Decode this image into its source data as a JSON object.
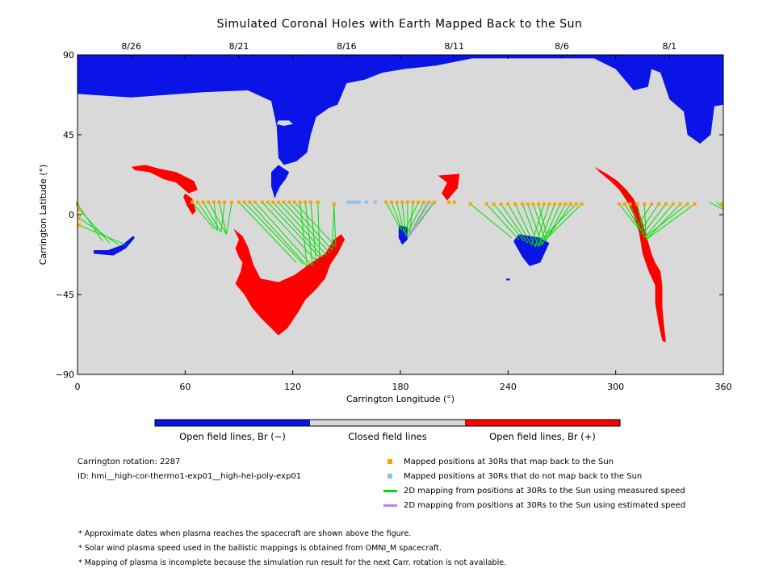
{
  "title": "Simulated Coronal Holes with Earth Mapped Back to the Sun",
  "chart_data": {
    "type": "scatter",
    "title": "Simulated Coronal Holes with Earth Mapped Back to the Sun",
    "xlabel": "Carrington Longitude (°)",
    "ylabel": "Carrington Latitude (°)",
    "xlim": [
      0,
      360
    ],
    "ylim": [
      -90,
      90
    ],
    "x_ticks": [
      {
        "value": 0,
        "label": "0"
      },
      {
        "value": 60,
        "label": "60"
      },
      {
        "value": 120,
        "label": "120"
      },
      {
        "value": 180,
        "label": "180"
      },
      {
        "value": 240,
        "label": "240"
      },
      {
        "value": 300,
        "label": "300"
      },
      {
        "value": 360,
        "label": "360"
      }
    ],
    "y_ticks": [
      {
        "value": 90,
        "label": "90"
      },
      {
        "value": 45,
        "label": "45"
      },
      {
        "value": 0,
        "label": "0"
      },
      {
        "value": -45,
        "label": "−45"
      },
      {
        "value": -90,
        "label": "−90"
      }
    ],
    "top_dates": [
      {
        "label": "8/26",
        "lon": 30
      },
      {
        "label": "8/21",
        "lon": 90
      },
      {
        "label": "8/16",
        "lon": 150
      },
      {
        "label": "8/11",
        "lon": 210
      },
      {
        "label": "8/6",
        "lon": 270
      },
      {
        "label": "8/1",
        "lon": 330
      }
    ],
    "colors": {
      "open_negative": "#0a14e6",
      "closed": "#d9d9d9",
      "open_positive": "#ff0000",
      "mapped": "#f5a500",
      "unmapped": "#88c1f0",
      "measured_line": "#00e000",
      "estimated_line": "#c080f0"
    },
    "regions_negative": [
      [
        [
          0,
          90
        ],
        [
          360,
          90
        ],
        [
          360,
          62
        ],
        [
          355,
          61
        ],
        [
          353,
          45
        ],
        [
          347,
          40
        ],
        [
          340,
          45
        ],
        [
          338,
          58
        ],
        [
          330,
          65
        ],
        [
          325,
          80
        ],
        [
          320,
          82
        ],
        [
          318,
          72
        ],
        [
          310,
          70
        ],
        [
          300,
          82
        ],
        [
          288,
          88
        ],
        [
          245,
          88
        ],
        [
          220,
          88
        ],
        [
          200,
          84
        ],
        [
          182,
          82
        ],
        [
          170,
          80
        ],
        [
          160,
          76
        ],
        [
          150,
          74
        ],
        [
          145,
          62
        ],
        [
          140,
          60
        ],
        [
          133,
          55
        ],
        [
          130,
          45
        ],
        [
          128,
          35
        ],
        [
          122,
          30
        ],
        [
          115,
          28
        ],
        [
          112,
          32
        ],
        [
          111,
          50
        ],
        [
          108,
          64
        ],
        [
          95,
          70
        ],
        [
          70,
          69
        ],
        [
          30,
          66
        ],
        [
          0,
          68
        ]
      ],
      [
        [
          112,
          28
        ],
        [
          118,
          24
        ],
        [
          116,
          20
        ],
        [
          113,
          16
        ],
        [
          111,
          12
        ],
        [
          110,
          9
        ],
        [
          108,
          16
        ],
        [
          108,
          24
        ]
      ],
      [
        [
          246,
          -11
        ],
        [
          258,
          -13
        ],
        [
          263,
          -16
        ],
        [
          258,
          -27
        ],
        [
          252,
          -29
        ],
        [
          248,
          -24
        ],
        [
          243,
          -15
        ]
      ],
      [
        [
          179,
          -6
        ],
        [
          184,
          -7
        ],
        [
          184,
          -14
        ],
        [
          181,
          -17
        ],
        [
          179,
          -13
        ]
      ],
      [
        [
          9,
          -22
        ],
        [
          20,
          -23
        ],
        [
          27,
          -19
        ],
        [
          32,
          -13
        ],
        [
          31,
          -12
        ],
        [
          25,
          -17
        ],
        [
          17,
          -20
        ],
        [
          9,
          -20
        ]
      ]
    ],
    "regions_positive": [
      [
        [
          30,
          27
        ],
        [
          38,
          28
        ],
        [
          45,
          26
        ],
        [
          55,
          24
        ],
        [
          65,
          19
        ],
        [
          67,
          14
        ],
        [
          62,
          12
        ],
        [
          55,
          18
        ],
        [
          48,
          20
        ],
        [
          40,
          24
        ],
        [
          32,
          25
        ]
      ],
      [
        [
          60,
          12
        ],
        [
          64,
          9
        ],
        [
          66,
          2
        ],
        [
          64,
          0
        ],
        [
          61,
          5
        ],
        [
          59,
          10
        ]
      ],
      [
        [
          80,
          -7
        ],
        [
          87,
          -8
        ],
        [
          90,
          -14
        ],
        [
          88,
          -19
        ],
        [
          90,
          -24
        ],
        [
          92,
          -27
        ],
        [
          91,
          -32
        ],
        [
          88,
          -39
        ],
        [
          93,
          -45
        ],
        [
          97,
          -52
        ],
        [
          102,
          -58
        ],
        [
          108,
          -64
        ],
        [
          112,
          -68
        ],
        [
          117,
          -64
        ],
        [
          123,
          -55
        ],
        [
          127,
          -48
        ],
        [
          133,
          -42
        ],
        [
          138,
          -36
        ],
        [
          141,
          -28
        ],
        [
          145,
          -22
        ],
        [
          149,
          -14
        ],
        [
          147,
          -11
        ],
        [
          143,
          -14
        ],
        [
          138,
          -22
        ],
        [
          129,
          -28
        ],
        [
          121,
          -34
        ],
        [
          112,
          -38
        ],
        [
          102,
          -36
        ],
        [
          98,
          -28
        ],
        [
          95,
          -18
        ],
        [
          92,
          -12
        ],
        [
          87,
          -8
        ]
      ],
      [
        [
          201,
          22
        ],
        [
          213,
          23
        ],
        [
          212,
          15
        ],
        [
          206,
          8
        ],
        [
          203,
          12
        ],
        [
          206,
          18
        ]
      ],
      [
        [
          288,
          27
        ],
        [
          295,
          23
        ],
        [
          301,
          19
        ],
        [
          306,
          14
        ],
        [
          310,
          9
        ],
        [
          313,
          2
        ],
        [
          316,
          -8
        ],
        [
          318,
          -15
        ],
        [
          320,
          -22
        ],
        [
          322,
          -27
        ],
        [
          325,
          -32
        ],
        [
          326,
          -40
        ],
        [
          326,
          -52
        ],
        [
          327,
          -63
        ],
        [
          328,
          -72
        ],
        [
          326,
          -71
        ],
        [
          324,
          -62
        ],
        [
          322,
          -50
        ],
        [
          322,
          -40
        ],
        [
          318,
          -31
        ],
        [
          315,
          -22
        ],
        [
          313,
          -10
        ],
        [
          310,
          0
        ],
        [
          306,
          8
        ],
        [
          302,
          14
        ],
        [
          297,
          19
        ],
        [
          291,
          24
        ]
      ]
    ],
    "regions_small": [
      {
        "kind": "closed_island",
        "pts": [
          [
            112,
            53
          ],
          [
            118,
            53
          ],
          [
            120,
            51
          ],
          [
            115,
            50
          ],
          [
            111,
            51
          ]
        ]
      },
      {
        "kind": "negative_dot",
        "pts": [
          [
            239,
            -36
          ],
          [
            241,
            -36
          ],
          [
            241,
            -37
          ],
          [
            239,
            -37
          ]
        ]
      }
    ],
    "footpoints": [
      [
        14,
        -15
      ],
      [
        18,
        -16
      ],
      [
        23,
        -17
      ],
      [
        27,
        -17
      ],
      [
        28,
        -16
      ],
      [
        31,
        -15
      ],
      [
        32,
        -14
      ],
      [
        76,
        -8
      ],
      [
        78,
        -9
      ],
      [
        80,
        -10
      ],
      [
        83,
        -11
      ],
      [
        122,
        -27
      ],
      [
        126,
        -28
      ],
      [
        128,
        -29
      ],
      [
        131,
        -29
      ],
      [
        133,
        -26
      ],
      [
        135,
        -24
      ],
      [
        137,
        -24
      ],
      [
        139,
        -23
      ],
      [
        141,
        -22
      ],
      [
        142,
        -20
      ],
      [
        144,
        -18
      ],
      [
        180,
        -8
      ],
      [
        181,
        -9
      ],
      [
        182,
        -10
      ],
      [
        183,
        -12
      ],
      [
        184,
        -13
      ],
      [
        185,
        -12
      ],
      [
        242,
        -13
      ],
      [
        246,
        -14
      ],
      [
        249,
        -15
      ],
      [
        251,
        -16
      ],
      [
        253,
        -17
      ],
      [
        255,
        -18
      ],
      [
        257,
        -18
      ],
      [
        259,
        -17
      ],
      [
        261,
        -15
      ],
      [
        262,
        -13
      ],
      [
        312,
        -7
      ],
      [
        314,
        -9
      ],
      [
        315,
        -11
      ],
      [
        316,
        -13
      ],
      [
        317,
        -14
      ]
    ],
    "mapped_positions": [
      {
        "lon": 0,
        "lat": 6,
        "foot": 0
      },
      {
        "lon": 1,
        "lat": 3,
        "foot": 1
      },
      {
        "lon": 1,
        "lat": -2,
        "foot": 2
      },
      {
        "lon": 1,
        "lat": -6,
        "foot": 3
      },
      {
        "lon": 64,
        "lat": 7,
        "foot": 7
      },
      {
        "lon": 67,
        "lat": 7,
        "foot": 8
      },
      {
        "lon": 70,
        "lat": 7,
        "foot": 9
      },
      {
        "lon": 73,
        "lat": 7,
        "foot": 10
      },
      {
        "lon": 76,
        "lat": 7,
        "foot": 8
      },
      {
        "lon": 79,
        "lat": 7,
        "foot": 10
      },
      {
        "lon": 82,
        "lat": 7,
        "foot": 9
      },
      {
        "lon": 86,
        "lat": 7,
        "foot": 10
      },
      {
        "lon": 90,
        "lat": 7,
        "foot": 11
      },
      {
        "lon": 93,
        "lat": 7,
        "foot": 12
      },
      {
        "lon": 96,
        "lat": 7,
        "foot": 13
      },
      {
        "lon": 99,
        "lat": 7,
        "foot": 14
      },
      {
        "lon": 103,
        "lat": 7,
        "foot": 15
      },
      {
        "lon": 106,
        "lat": 7,
        "foot": 16
      },
      {
        "lon": 109,
        "lat": 7,
        "foot": 17
      },
      {
        "lon": 112,
        "lat": 7,
        "foot": 18
      },
      {
        "lon": 115,
        "lat": 7,
        "foot": 19
      },
      {
        "lon": 118,
        "lat": 7,
        "foot": 20
      },
      {
        "lon": 121,
        "lat": 7,
        "foot": 21
      },
      {
        "lon": 124,
        "lat": 7,
        "foot": 13
      },
      {
        "lon": 127,
        "lat": 7,
        "foot": 14
      },
      {
        "lon": 130,
        "lat": 7,
        "foot": 15
      },
      {
        "lon": 134,
        "lat": 7,
        "foot": 16
      },
      {
        "lon": 143,
        "lat": 6,
        "foot": 20
      },
      {
        "lon": 172,
        "lat": 7,
        "foot": 22
      },
      {
        "lon": 175,
        "lat": 7,
        "foot": 23
      },
      {
        "lon": 178,
        "lat": 7,
        "foot": 24
      },
      {
        "lon": 181,
        "lat": 7,
        "foot": 25
      },
      {
        "lon": 184,
        "lat": 7,
        "foot": 26
      },
      {
        "lon": 187,
        "lat": 7,
        "foot": 27
      },
      {
        "lon": 190,
        "lat": 7,
        "foot": 24
      },
      {
        "lon": 193,
        "lat": 7,
        "foot": 25
      },
      {
        "lon": 196,
        "lat": 7,
        "foot": 26
      },
      {
        "lon": 199,
        "lat": 7,
        "foot": 27
      },
      {
        "lon": 207,
        "lat": 7,
        "foot": -1
      },
      {
        "lon": 210,
        "lat": 7,
        "foot": -1
      },
      {
        "lon": 219,
        "lat": 6,
        "foot": 28
      },
      {
        "lon": 228,
        "lat": 6,
        "foot": 29
      },
      {
        "lon": 232,
        "lat": 6,
        "foot": 30
      },
      {
        "lon": 236,
        "lat": 6,
        "foot": 31
      },
      {
        "lon": 240,
        "lat": 6,
        "foot": 32
      },
      {
        "lon": 244,
        "lat": 6,
        "foot": 33
      },
      {
        "lon": 248,
        "lat": 6,
        "foot": 34
      },
      {
        "lon": 251,
        "lat": 6,
        "foot": 35
      },
      {
        "lon": 254,
        "lat": 6,
        "foot": 36
      },
      {
        "lon": 257,
        "lat": 6,
        "foot": 37
      },
      {
        "lon": 260,
        "lat": 6,
        "foot": 32
      },
      {
        "lon": 263,
        "lat": 6,
        "foot": 33
      },
      {
        "lon": 266,
        "lat": 6,
        "foot": 34
      },
      {
        "lon": 269,
        "lat": 6,
        "foot": 35
      },
      {
        "lon": 272,
        "lat": 6,
        "foot": 36
      },
      {
        "lon": 275,
        "lat": 6,
        "foot": 37
      },
      {
        "lon": 278,
        "lat": 6,
        "foot": 33
      },
      {
        "lon": 281,
        "lat": 6,
        "foot": 34
      },
      {
        "lon": 302,
        "lat": 6,
        "foot": 38
      },
      {
        "lon": 305,
        "lat": 6,
        "foot": 39
      },
      {
        "lon": 308,
        "lat": 6,
        "foot": 40
      },
      {
        "lon": 312,
        "lat": 6,
        "foot": 41
      },
      {
        "lon": 316,
        "lat": 6,
        "foot": 42
      },
      {
        "lon": 320,
        "lat": 6,
        "foot": 38
      },
      {
        "lon": 324,
        "lat": 6,
        "foot": 39
      },
      {
        "lon": 328,
        "lat": 6,
        "foot": 40
      },
      {
        "lon": 332,
        "lat": 6,
        "foot": 41
      },
      {
        "lon": 336,
        "lat": 6,
        "foot": 42
      },
      {
        "lon": 340,
        "lat": 6,
        "foot": 41
      },
      {
        "lon": 344,
        "lat": 6,
        "foot": 42
      },
      {
        "lon": 359,
        "lat": 6,
        "foot": -1
      }
    ],
    "unmapped_positions": [
      {
        "lon": 151,
        "lat": 7
      },
      {
        "lon": 153,
        "lat": 7
      },
      {
        "lon": 155,
        "lat": 7
      },
      {
        "lon": 157,
        "lat": 7
      },
      {
        "lon": 161,
        "lat": 7
      },
      {
        "lon": 166,
        "lat": 7
      }
    ],
    "estimated_lines": [
      {
        "from": [
          195,
          7
        ],
        "to": [
          184,
          -13
        ]
      },
      {
        "from": [
          198,
          7
        ],
        "to": [
          185,
          -12
        ]
      }
    ],
    "extra_measured_lines": [
      {
        "from": [
          352,
          7
        ],
        "to": [
          360,
          3
        ]
      },
      {
        "from": [
          356,
          7
        ],
        "to": [
          360,
          4
        ]
      },
      {
        "from": [
          143,
          6
        ],
        "to": [
          144,
          -18
        ]
      }
    ]
  },
  "colorbar": {
    "labels": [
      "Open field lines, Br (−)",
      "Closed field lines",
      "Open field lines, Br (+)"
    ]
  },
  "info": {
    "rotation": "Carrington rotation: 2287",
    "id": "ID: hmi__high-cor-thermo1-exp01__high-hel-poly-exp01"
  },
  "legend": [
    {
      "kind": "square",
      "color": "#f5a500",
      "label": "Mapped positions at 30Rs that map back to the Sun"
    },
    {
      "kind": "square",
      "color": "#88c1f0",
      "label": "Mapped positions at 30Rs that do not map back to the Sun"
    },
    {
      "kind": "line",
      "color": "#00e000",
      "label": "2D mapping from positions at 30Rs to the Sun using measured speed"
    },
    {
      "kind": "line",
      "color": "#c080f0",
      "label": "2D mapping from positions at 30Rs to the Sun using estimated speed"
    }
  ],
  "notes": [
    "* Approximate dates when plasma reaches the spacecraft are shown above the figure.",
    "* Solar wind plasma speed used in the ballistic mappings is obtained from OMNI_M spacecraft.",
    "* Mapping of plasma is incomplete because the simulation run result for the next Carr. rotation is not available."
  ]
}
